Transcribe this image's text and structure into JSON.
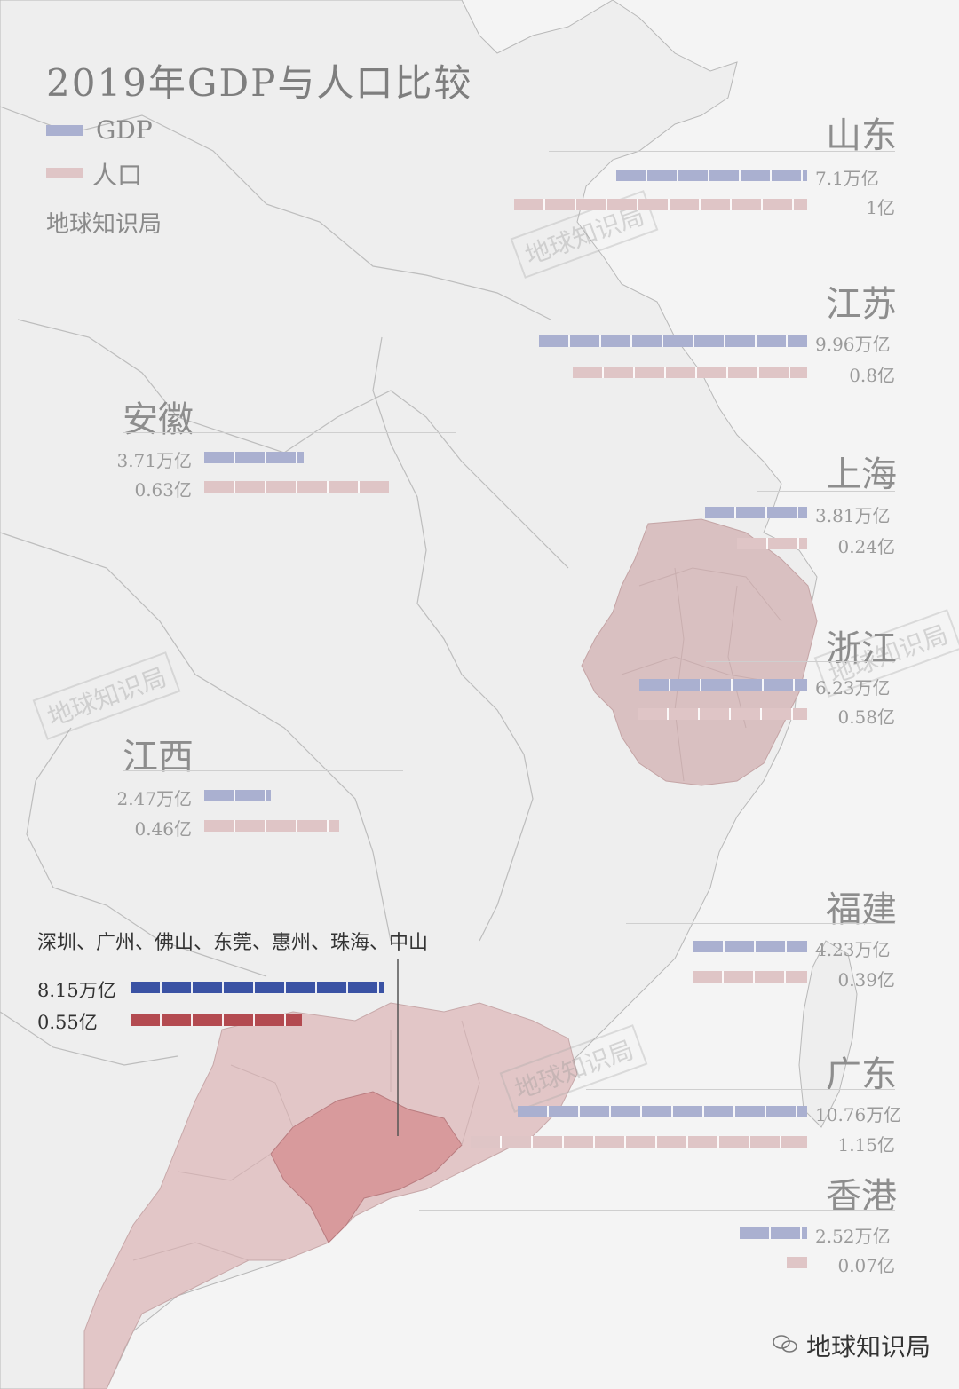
{
  "title": "2019年GDP与人口比较",
  "legend": [
    {
      "label": "GDP",
      "color": "#aab0d0"
    },
    {
      "label": "人口",
      "color": "#dfc5c6"
    }
  ],
  "source": "地球知识局",
  "watermark": "地球知识局",
  "brand": "地球知识局",
  "colors": {
    "land": "#eeeeee",
    "sea": "#f4f4f4",
    "zhejiang": "#d9c0c1",
    "guangdong": "#e2c6c7",
    "pearl_delta": "#d89a9c",
    "gdp": "#aab0d0",
    "pop": "#dfc5c6",
    "gdp_highlight": "#3a52a4",
    "pop_highlight": "#b34a50"
  },
  "units": {
    "gdp": "万亿",
    "pop": "亿"
  },
  "chart_data": {
    "type": "bar",
    "categories": [
      "山东",
      "江苏",
      "上海",
      "浙江",
      "福建",
      "广东",
      "香港",
      "安徽",
      "江西",
      "深圳、广州、佛山、东莞、惠州、珠海、中山"
    ],
    "series": [
      {
        "name": "GDP",
        "values": [
          7.1,
          9.96,
          3.81,
          6.23,
          4.23,
          10.76,
          2.52,
          3.71,
          2.47,
          8.15
        ]
      },
      {
        "name": "人口",
        "values": [
          1,
          0.8,
          0.24,
          0.58,
          0.39,
          1.15,
          0.07,
          0.63,
          0.46,
          0.55
        ]
      }
    ],
    "value_labels": {
      "gdp": [
        "7.1万亿",
        "9.96万亿",
        "3.81万亿",
        "6.23万亿",
        "4.23万亿",
        "10.76万亿",
        "2.52万亿",
        "3.71万亿",
        "2.47万亿",
        "8.15万亿"
      ],
      "pop": [
        "1亿",
        "0.8亿",
        "0.24亿",
        "0.58亿",
        "0.39亿",
        "1.15亿",
        "0.07亿",
        "0.63亿",
        "0.46亿",
        "0.55亿"
      ]
    },
    "highlight": "深圳、广州、佛山、东莞、惠州、珠海、中山"
  }
}
